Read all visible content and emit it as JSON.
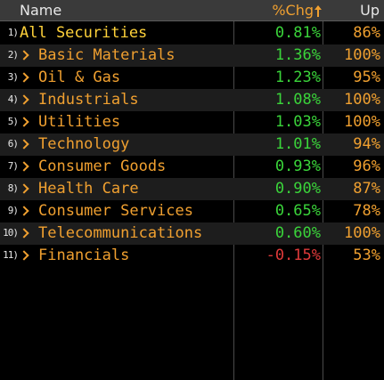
{
  "header": {
    "name_label": "Name",
    "chg_label": "%Chg",
    "up_label": "Up",
    "sort_icon": "arrow-up-icon"
  },
  "rows": [
    {
      "num": "1)",
      "name": "All Securities",
      "chg": "0.81%",
      "up": "86%",
      "expandable": false,
      "sign": "pos"
    },
    {
      "num": "2)",
      "name": "Basic Materials",
      "chg": "1.36%",
      "up": "100%",
      "expandable": true,
      "sign": "pos"
    },
    {
      "num": "3)",
      "name": "Oil & Gas",
      "chg": "1.23%",
      "up": "95%",
      "expandable": true,
      "sign": "pos"
    },
    {
      "num": "4)",
      "name": "Industrials",
      "chg": "1.08%",
      "up": "100%",
      "expandable": true,
      "sign": "pos"
    },
    {
      "num": "5)",
      "name": "Utilities",
      "chg": "1.03%",
      "up": "100%",
      "expandable": true,
      "sign": "pos"
    },
    {
      "num": "6)",
      "name": "Technology",
      "chg": "1.01%",
      "up": "94%",
      "expandable": true,
      "sign": "pos"
    },
    {
      "num": "7)",
      "name": "Consumer Goods",
      "chg": "0.93%",
      "up": "96%",
      "expandable": true,
      "sign": "pos"
    },
    {
      "num": "8)",
      "name": "Health Care",
      "chg": "0.90%",
      "up": "87%",
      "expandable": true,
      "sign": "pos"
    },
    {
      "num": "9)",
      "name": "Consumer Services",
      "chg": "0.65%",
      "up": "78%",
      "expandable": true,
      "sign": "pos"
    },
    {
      "num": "10)",
      "name": "Telecommunications",
      "chg": "0.60%",
      "up": "100%",
      "expandable": true,
      "sign": "pos"
    },
    {
      "num": "11)",
      "name": "Financials",
      "chg": "-0.15%",
      "up": "53%",
      "expandable": true,
      "sign": "neg"
    }
  ],
  "colors": {
    "background": "#000000",
    "header_bg": "#3a3a3a",
    "label_orange": "#f0a030",
    "positive_green": "#3ad43a",
    "negative_red": "#e03a3a"
  }
}
